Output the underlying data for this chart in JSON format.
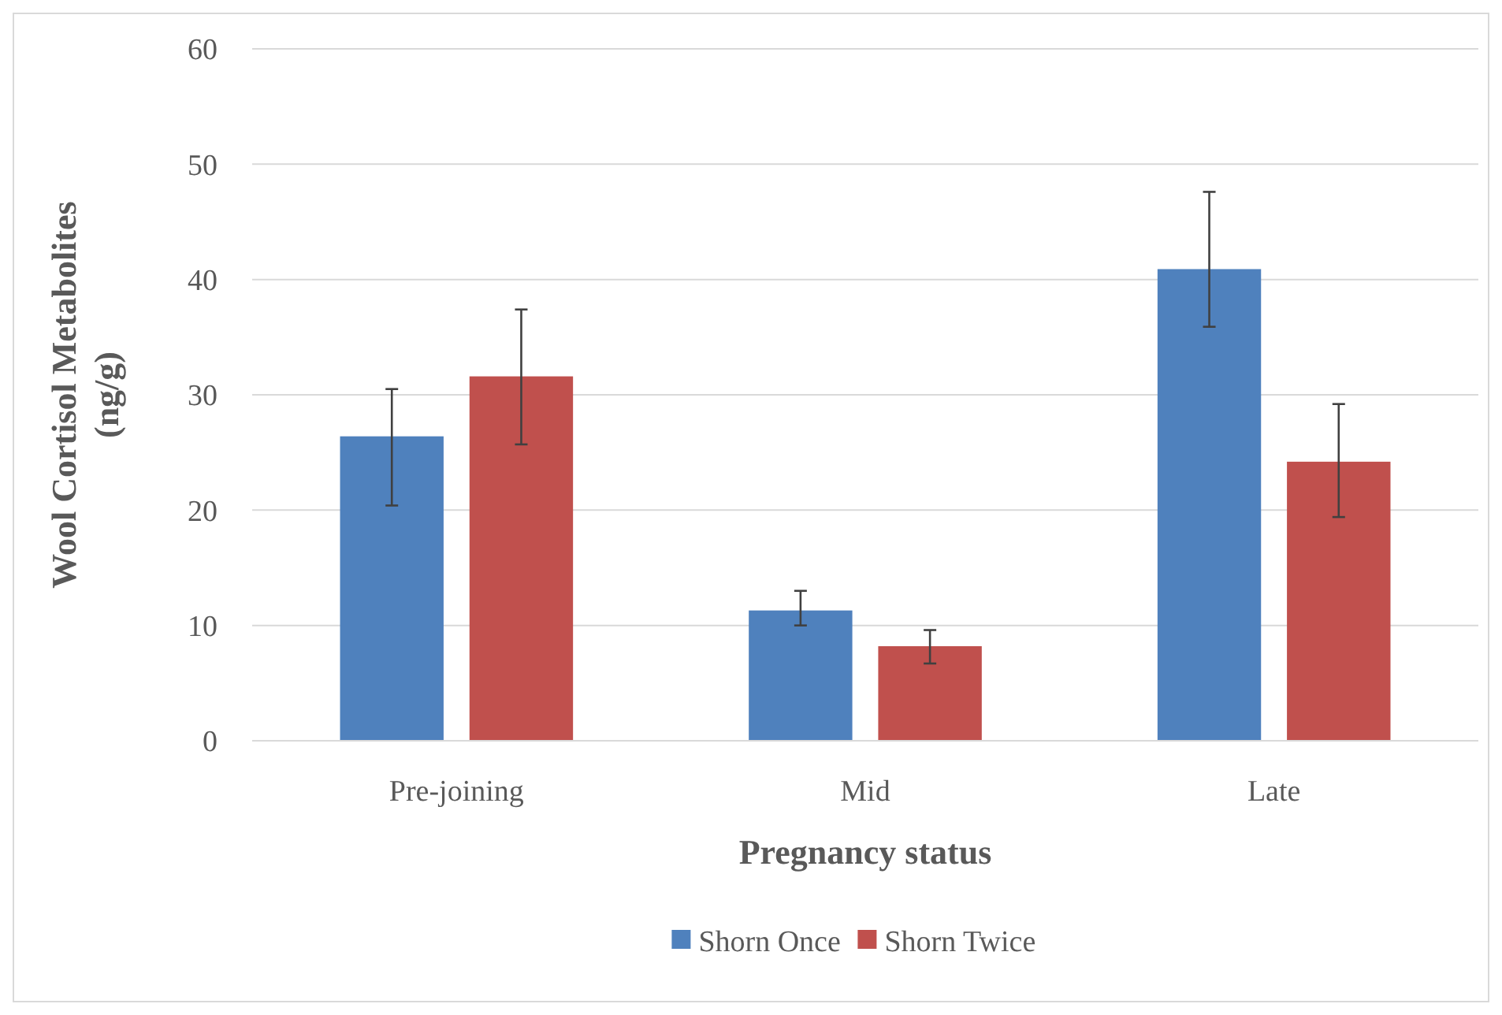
{
  "chart_data": {
    "type": "bar",
    "xlabel": "Pregnancy status",
    "ylabel": "Wool Cortisol Metabolites (ng/g)",
    "categories": [
      "Pre-joining",
      "Mid",
      "Late"
    ],
    "series": [
      {
        "name": "Shorn Once",
        "color": "#4f81bd",
        "values": [
          26.4,
          11.3,
          40.9
        ],
        "errors": [
          [
            20.4,
            30.5
          ],
          [
            10.0,
            13.0
          ],
          [
            35.9,
            47.6
          ]
        ]
      },
      {
        "name": "Shorn Twice",
        "color": "#c0504d",
        "values": [
          31.6,
          8.2,
          24.2
        ],
        "errors": [
          [
            25.7,
            37.4
          ],
          [
            6.7,
            9.6
          ],
          [
            19.4,
            29.2
          ]
        ]
      }
    ],
    "ylim": [
      0,
      60
    ],
    "yticks": [
      0,
      10,
      20,
      30,
      40,
      50,
      60
    ],
    "grid": "y",
    "legend": "bottom"
  }
}
